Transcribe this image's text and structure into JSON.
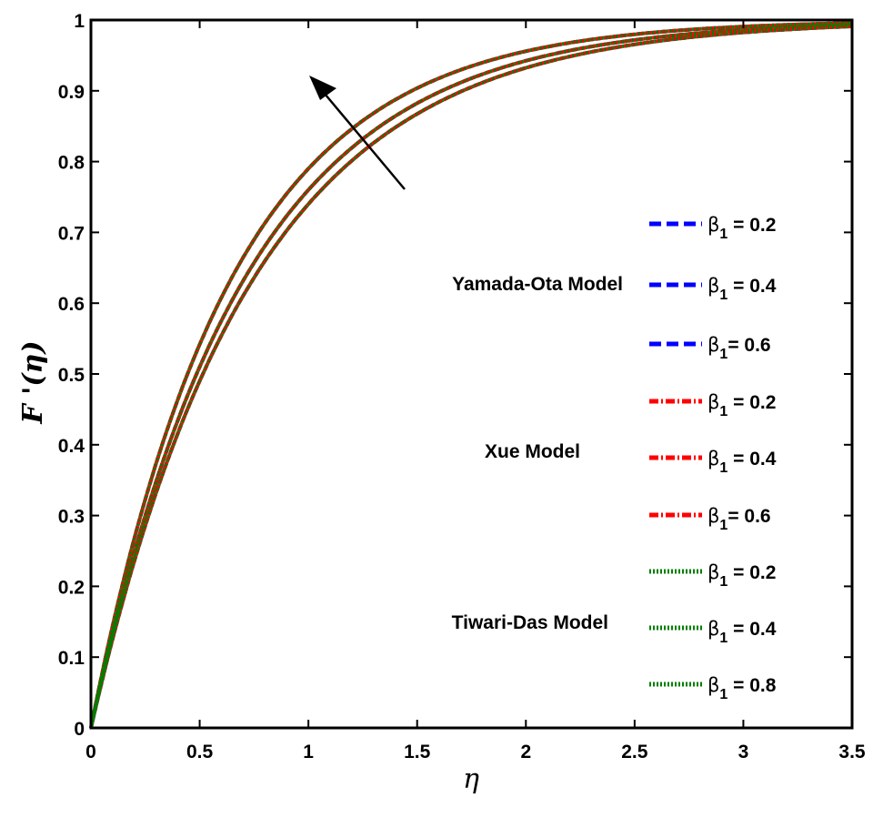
{
  "chart_data": {
    "type": "line",
    "title": "",
    "xlabel": "η",
    "ylabel": "F '(η)",
    "xlim": [
      0,
      3.5
    ],
    "ylim": [
      0,
      1
    ],
    "xticks": [
      "0",
      "0.5",
      "1",
      "1.5",
      "2",
      "2.5",
      "3",
      "3.5"
    ],
    "yticks": [
      "0",
      "0.1",
      "0.2",
      "0.3",
      "0.4",
      "0.5",
      "0.6",
      "0.7",
      "0.8",
      "0.9",
      "1"
    ],
    "grid": false,
    "legend_position": "right-inside",
    "annotation": "arrow pointing up-left indicating increasing β1",
    "x": [
      0,
      0.25,
      0.5,
      0.75,
      1.0,
      1.25,
      1.5,
      1.75,
      2.0,
      2.25,
      2.5,
      2.75,
      3.0,
      3.25,
      3.5
    ],
    "series": [
      {
        "name": "Yamada-Ota Model, β1 = 0.2",
        "model": "Yamada-Ota Model",
        "beta1": 0.2,
        "color": "#0000ff",
        "style": "dashed",
        "values": [
          0,
          0.29,
          0.49,
          0.64,
          0.74,
          0.82,
          0.87,
          0.91,
          0.93,
          0.95,
          0.97,
          0.98,
          0.98,
          0.99,
          1.0
        ]
      },
      {
        "name": "Yamada-Ota Model, β1 = 0.4",
        "model": "Yamada-Ota Model",
        "beta1": 0.4,
        "color": "#0000ff",
        "style": "dashed",
        "values": [
          0,
          0.3,
          0.51,
          0.66,
          0.76,
          0.84,
          0.89,
          0.92,
          0.95,
          0.96,
          0.97,
          0.98,
          0.99,
          0.99,
          1.0
        ]
      },
      {
        "name": "Yamada-Ota Model, β1 = 0.6",
        "model": "Yamada-Ota Model",
        "beta1": 0.6,
        "color": "#0000ff",
        "style": "dashed",
        "values": [
          0,
          0.32,
          0.54,
          0.69,
          0.79,
          0.86,
          0.9,
          0.93,
          0.95,
          0.97,
          0.98,
          0.99,
          0.99,
          1.0,
          1.0
        ]
      },
      {
        "name": "Xue Model, β1 = 0.2",
        "model": "Xue Model",
        "beta1": 0.2,
        "color": "#ff0000",
        "style": "dash-dot",
        "values": [
          0,
          0.29,
          0.49,
          0.64,
          0.74,
          0.82,
          0.87,
          0.91,
          0.93,
          0.95,
          0.97,
          0.98,
          0.98,
          0.99,
          1.0
        ]
      },
      {
        "name": "Xue Model, β1 = 0.4",
        "model": "Xue Model",
        "beta1": 0.4,
        "color": "#ff0000",
        "style": "dash-dot",
        "values": [
          0,
          0.3,
          0.51,
          0.66,
          0.76,
          0.84,
          0.89,
          0.92,
          0.95,
          0.96,
          0.97,
          0.98,
          0.99,
          0.99,
          1.0
        ]
      },
      {
        "name": "Xue Model, β1 = 0.6",
        "model": "Xue Model",
        "beta1": 0.6,
        "color": "#ff0000",
        "style": "dash-dot",
        "values": [
          0,
          0.32,
          0.54,
          0.69,
          0.79,
          0.86,
          0.9,
          0.93,
          0.95,
          0.97,
          0.98,
          0.99,
          0.99,
          1.0,
          1.0
        ]
      },
      {
        "name": "Tiwari-Das Model, β1 = 0.2",
        "model": "Tiwari-Das Model",
        "beta1": 0.2,
        "color": "#007f00",
        "style": "dotted",
        "values": [
          0,
          0.29,
          0.49,
          0.64,
          0.74,
          0.82,
          0.87,
          0.91,
          0.93,
          0.95,
          0.97,
          0.98,
          0.98,
          0.99,
          1.0
        ]
      },
      {
        "name": "Tiwari-Das Model, β1 = 0.4",
        "model": "Tiwari-Das Model",
        "beta1": 0.4,
        "color": "#007f00",
        "style": "dotted",
        "values": [
          0,
          0.3,
          0.51,
          0.66,
          0.76,
          0.84,
          0.89,
          0.92,
          0.95,
          0.96,
          0.97,
          0.98,
          0.99,
          0.99,
          1.0
        ]
      },
      {
        "name": "Tiwari-Das Model, β1 = 0.8",
        "model": "Tiwari-Das Model",
        "beta1": 0.8,
        "color": "#007f00",
        "style": "dotted",
        "values": [
          0,
          0.32,
          0.54,
          0.69,
          0.79,
          0.86,
          0.9,
          0.93,
          0.95,
          0.97,
          0.98,
          0.99,
          0.99,
          1.0,
          1.0
        ]
      }
    ]
  },
  "legend": {
    "models": [
      {
        "label": "Yamada-Ota Model"
      },
      {
        "label": "Xue Model"
      },
      {
        "label": "Tiwari-Das Model"
      }
    ],
    "entries": [
      {
        "beta": "β",
        "sub": "1",
        "text": " = 0.2"
      },
      {
        "beta": "β",
        "sub": "1",
        "text": " = 0.4"
      },
      {
        "beta": "β",
        "sub": "1",
        "text": "= 0.6"
      },
      {
        "beta": "β",
        "sub": "1",
        "text": " = 0.2"
      },
      {
        "beta": "β",
        "sub": "1",
        "text": " = 0.4"
      },
      {
        "beta": "β",
        "sub": "1",
        "text": "= 0.6"
      },
      {
        "beta": "β",
        "sub": "1",
        "text": " = 0.2"
      },
      {
        "beta": "β",
        "sub": "1",
        "text": " = 0.4"
      },
      {
        "beta": "β",
        "sub": "1",
        "text": " = 0.8"
      }
    ]
  },
  "axes": {
    "xlabel": "η",
    "ylabel": "F '(η)"
  }
}
